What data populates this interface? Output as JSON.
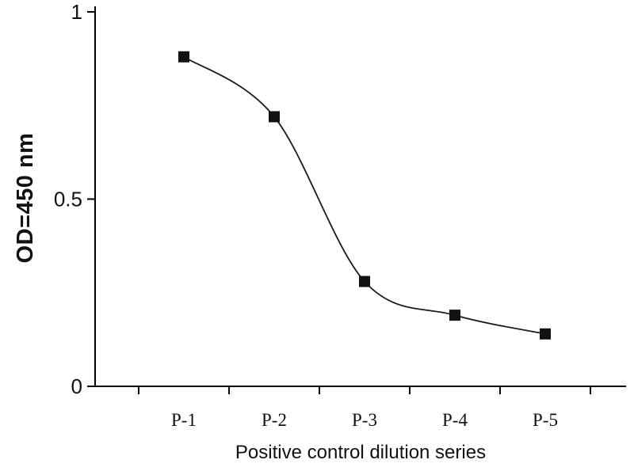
{
  "chart_data": {
    "type": "line",
    "title": "",
    "xlabel": "Positive control dilution series",
    "ylabel": "OD=450 nm",
    "categories": [
      "P-1",
      "P-2",
      "P-3",
      "P-4",
      "P-5"
    ],
    "values": [
      0.88,
      0.72,
      0.28,
      0.19,
      0.14
    ],
    "ylim": [
      0,
      1
    ],
    "yticks": [
      0,
      0.5,
      1
    ],
    "ytick_labels": [
      "0",
      "0.5",
      "1"
    ],
    "grid": false,
    "legend": "none",
    "marker": "square",
    "marker_size": 14,
    "line_color": "#1a1a1a",
    "marker_color": "#111111",
    "axis_color": "#000000"
  }
}
